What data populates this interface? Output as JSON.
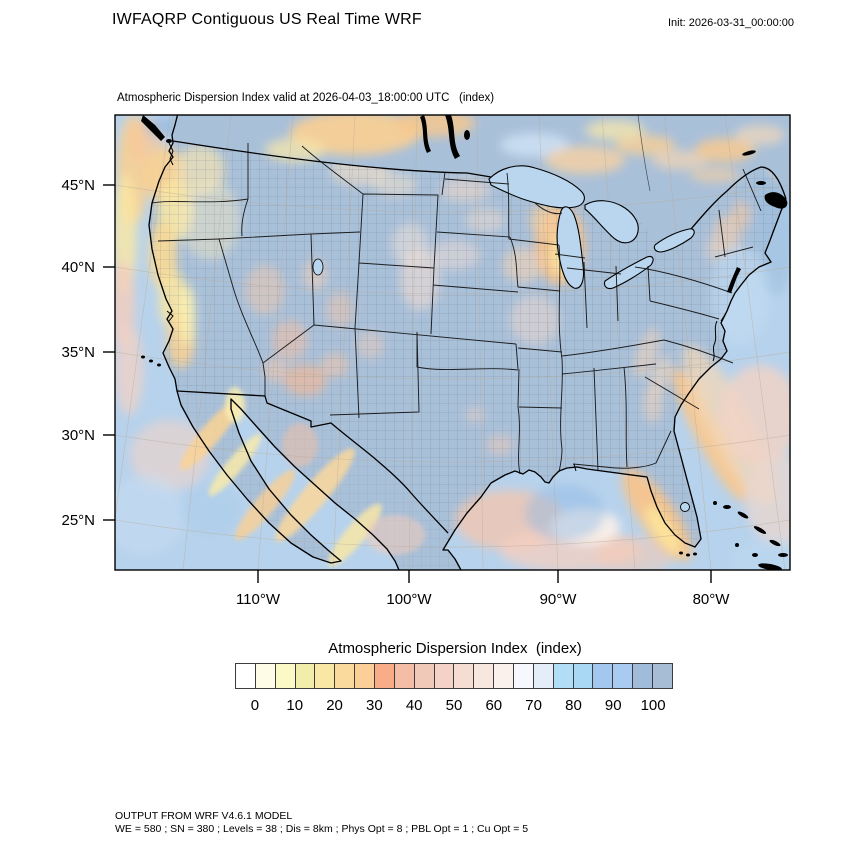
{
  "header": {
    "title": "IWFAQRP Contiguous US Real Time WRF",
    "init": "Init: 2026-03-31_00:00:00"
  },
  "map": {
    "subtitle": "Atmospheric Dispersion Index valid at 2026-04-03_18:00:00 UTC   (index)",
    "y_ticks": [
      {
        "label": "45°N"
      },
      {
        "label": "40°N"
      },
      {
        "label": "35°N"
      },
      {
        "label": "30°N"
      },
      {
        "label": "25°N"
      }
    ],
    "x_ticks": [
      {
        "label": "110°W"
      },
      {
        "label": "100°W"
      },
      {
        "label": "90°W"
      },
      {
        "label": "80°W"
      }
    ]
  },
  "legend": {
    "title": "Atmospheric Dispersion Index  (index)",
    "tick_labels": [
      "0",
      "10",
      "20",
      "30",
      "40",
      "50",
      "60",
      "70",
      "80",
      "90",
      "100"
    ],
    "colors": [
      "#ffffff",
      "#fefce6",
      "#fbf9c6",
      "#f1edaa",
      "#f9e7a4",
      "#fbdb9d",
      "#fbcf97",
      "#f8ad88",
      "#f3bda6",
      "#f1c9b8",
      "#f4d3c6",
      "#f6ddd2",
      "#f8e7de",
      "#fbf1ec",
      "#f6f8fd",
      "#e5edf9",
      "#b1ddf6",
      "#a8d8f4",
      "#a3c7ef",
      "#a9cbf1",
      "#a1bbdb",
      "#a7bdd5"
    ]
  },
  "footer": {
    "line1": "OUTPUT FROM WRF V4.6.1 MODEL",
    "line2": "WE = 580 ; SN = 380 ; Levels = 38 ; Dis = 8km ; Phys Opt = 8 ; PBL Opt = 1 ; Cu Opt = 5"
  },
  "chart_data": {
    "type": "heatmap",
    "title": "IWFAQRP Contiguous US Real Time WRF",
    "subtitle": "Atmospheric Dispersion Index valid at 2026-04-03_18:00:00 UTC   (index)",
    "init_time": "2026-03-31_00:00:00",
    "valid_time": "2026-04-03_18:00:00 UTC",
    "variable": "Atmospheric Dispersion Index",
    "units": "index",
    "projection": "Lambert conformal WRF CONUS domain with county and state outlines",
    "xlabel_ticks": [
      "110°W",
      "100°W",
      "90°W",
      "80°W"
    ],
    "ylabel_ticks": [
      "45°N",
      "40°N",
      "35°N",
      "30°N",
      "25°N"
    ],
    "colorbar": {
      "title": "Atmospheric Dispersion Index  (index)",
      "tick_values": [
        0,
        10,
        20,
        30,
        40,
        50,
        60,
        70,
        80,
        90,
        100
      ],
      "cell_width_units": 5,
      "cell_edges": [
        -5,
        0,
        5,
        10,
        15,
        20,
        25,
        30,
        35,
        40,
        45,
        50,
        55,
        60,
        65,
        70,
        75,
        80,
        85,
        90,
        95,
        100,
        105
      ],
      "colors": [
        "#ffffff",
        "#fefce6",
        "#fbf9c6",
        "#f1edaa",
        "#f9e7a4",
        "#fbdb9d",
        "#fbcf97",
        "#f8ad88",
        "#f3bda6",
        "#f1c9b8",
        "#f4d3c6",
        "#f6ddd2",
        "#f8e7de",
        "#fbf1ec",
        "#f6f8fd",
        "#e5edf9",
        "#b1ddf6",
        "#a8d8f4",
        "#a3c7ef",
        "#a9cbf1",
        "#a1bbdb",
        "#a7bdd5"
      ]
    },
    "field_regions": [
      {
        "region": "Central and eastern US, Texas through the Appalachians and Northeast",
        "approx_index": "95-105 (gray-blue)"
      },
      {
        "region": "Pacific Northwest and California coastal belt",
        "approx_index": "10-35 (yellow-orange)"
      },
      {
        "region": "Great Basin / Arizona scattered patches",
        "approx_index": "35-45 (salmon)"
      },
      {
        "region": "Wisconsin / Illinois / Iowa",
        "approx_index": "20-45 (orange with yellow core)"
      },
      {
        "region": "Canadian prairies and Quebec patches",
        "approx_index": "20-35 (orange)"
      },
      {
        "region": "Gulf of Mexico and offshore Atlantic",
        "approx_index": "40-60 (pink) with 25-35 orange bands hugging Florida and Carolina coasts"
      },
      {
        "region": "Baja California and western Mexico coast",
        "approx_index": "10-30 (yellow-orange streaks)"
      },
      {
        "region": "High Plains (CO/NE/Dakotas) speckles",
        "approx_index": "45-60 (pale pink)"
      }
    ]
  }
}
